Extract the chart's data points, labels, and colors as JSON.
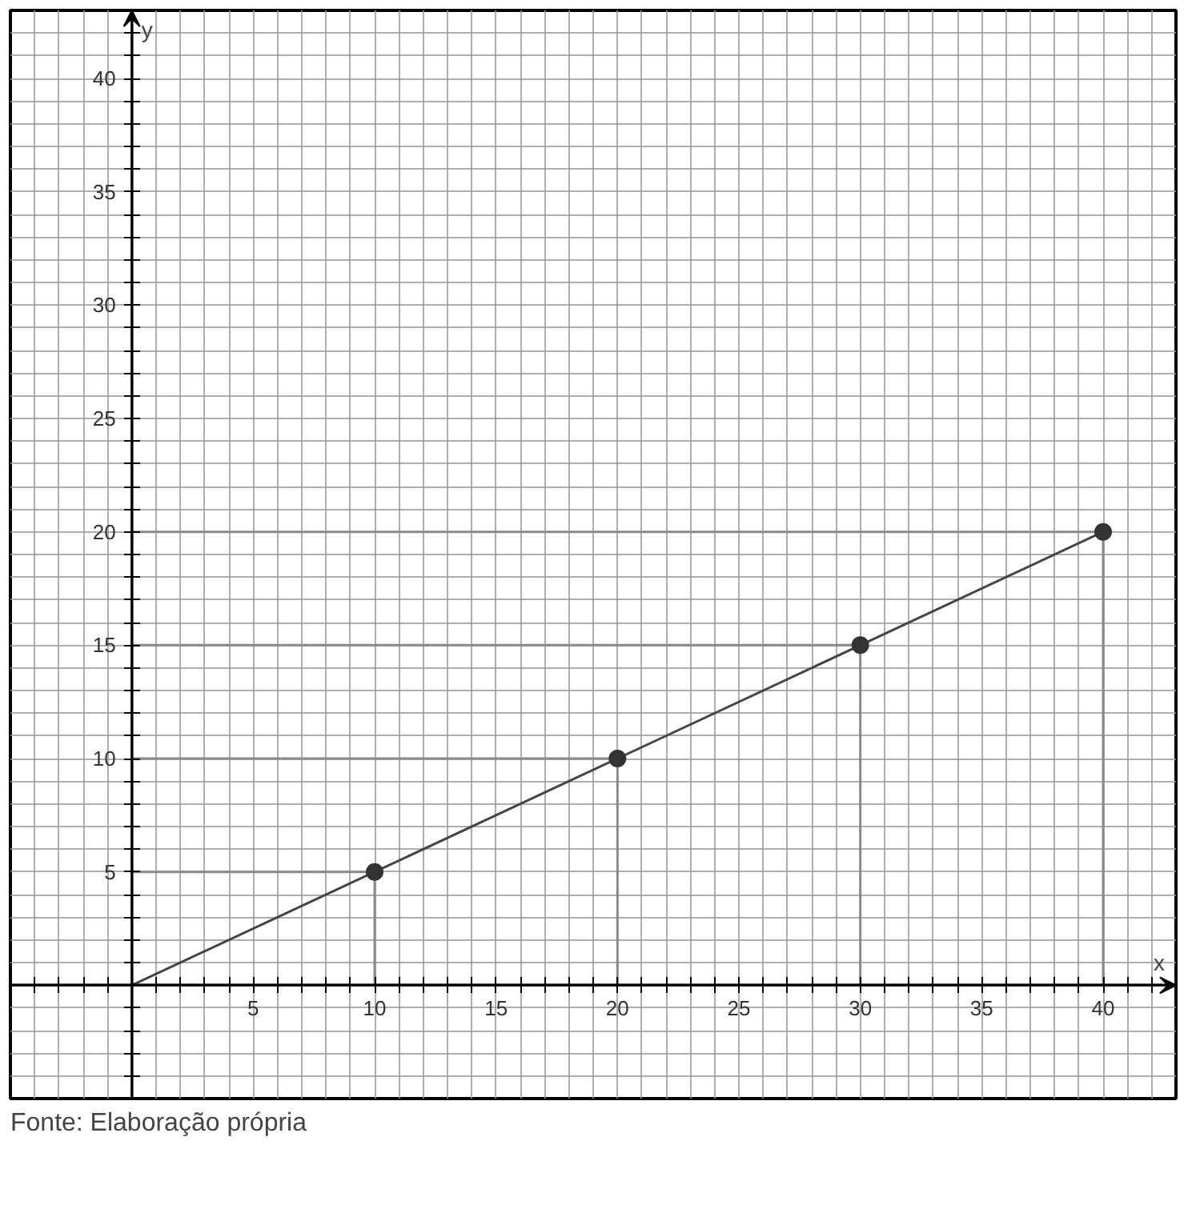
{
  "chart_data": {
    "type": "line",
    "xlabel": "x",
    "ylabel": "y",
    "xlim": [
      -5,
      43
    ],
    "ylim": [
      -5,
      43
    ],
    "xticks": [
      {
        "value": -5,
        "label": null
      },
      {
        "value": -4,
        "label": null
      },
      {
        "value": -3,
        "label": null
      },
      {
        "value": -2,
        "label": null
      },
      {
        "value": -1,
        "label": null
      },
      {
        "value": 0,
        "label": null
      },
      {
        "value": 1,
        "label": null
      },
      {
        "value": 2,
        "label": null
      },
      {
        "value": 3,
        "label": null
      },
      {
        "value": 4,
        "label": null
      },
      5,
      {
        "value": 6,
        "label": null
      },
      {
        "value": 7,
        "label": null
      },
      {
        "value": 8,
        "label": null
      },
      {
        "value": 9,
        "label": null
      },
      10,
      {
        "value": 11,
        "label": null
      },
      {
        "value": 12,
        "label": null
      },
      {
        "value": 13,
        "label": null
      },
      {
        "value": 14,
        "label": null
      },
      15,
      {
        "value": 16,
        "label": null
      },
      {
        "value": 17,
        "label": null
      },
      {
        "value": 18,
        "label": null
      },
      {
        "value": 19,
        "label": null
      },
      20,
      {
        "value": 21,
        "label": null
      },
      {
        "value": 22,
        "label": null
      },
      {
        "value": 23,
        "label": null
      },
      {
        "value": 24,
        "label": null
      },
      25,
      {
        "value": 26,
        "label": null
      },
      {
        "value": 27,
        "label": null
      },
      {
        "value": 28,
        "label": null
      },
      {
        "value": 29,
        "label": null
      },
      30,
      {
        "value": 31,
        "label": null
      },
      {
        "value": 32,
        "label": null
      },
      {
        "value": 33,
        "label": null
      },
      {
        "value": 34,
        "label": null
      },
      35,
      {
        "value": 36,
        "label": null
      },
      {
        "value": 37,
        "label": null
      },
      {
        "value": 38,
        "label": null
      },
      {
        "value": 39,
        "label": null
      },
      40,
      {
        "value": 41,
        "label": null
      },
      {
        "value": 42,
        "label": null
      },
      {
        "value": 43,
        "label": null
      }
    ],
    "yticks": [
      {
        "value": -5,
        "label": null
      },
      {
        "value": -4,
        "label": null
      },
      {
        "value": -3,
        "label": null
      },
      {
        "value": -2,
        "label": null
      },
      {
        "value": -1,
        "label": null
      },
      {
        "value": 0,
        "label": null
      },
      {
        "value": 1,
        "label": null
      },
      {
        "value": 2,
        "label": null
      },
      {
        "value": 3,
        "label": null
      },
      {
        "value": 4,
        "label": null
      },
      5,
      {
        "value": 6,
        "label": null
      },
      {
        "value": 7,
        "label": null
      },
      {
        "value": 8,
        "label": null
      },
      {
        "value": 9,
        "label": null
      },
      10,
      {
        "value": 11,
        "label": null
      },
      {
        "value": 12,
        "label": null
      },
      {
        "value": 13,
        "label": null
      },
      {
        "value": 14,
        "label": null
      },
      15,
      {
        "value": 16,
        "label": null
      },
      {
        "value": 17,
        "label": null
      },
      {
        "value": 18,
        "label": null
      },
      {
        "value": 19,
        "label": null
      },
      20,
      {
        "value": 21,
        "label": null
      },
      {
        "value": 22,
        "label": null
      },
      {
        "value": 23,
        "label": null
      },
      {
        "value": 24,
        "label": null
      },
      25,
      {
        "value": 26,
        "label": null
      },
      {
        "value": 27,
        "label": null
      },
      {
        "value": 28,
        "label": null
      },
      {
        "value": 29,
        "label": null
      },
      30,
      {
        "value": 31,
        "label": null
      },
      {
        "value": 32,
        "label": null
      },
      {
        "value": 33,
        "label": null
      },
      {
        "value": 34,
        "label": null
      },
      35,
      {
        "value": 36,
        "label": null
      },
      {
        "value": 37,
        "label": null
      },
      {
        "value": 38,
        "label": null
      },
      {
        "value": 39,
        "label": null
      },
      40,
      {
        "value": 41,
        "label": null
      },
      {
        "value": 42,
        "label": null
      },
      {
        "value": 43,
        "label": null
      }
    ],
    "grid": true,
    "series": [
      {
        "type": "line",
        "color": "#8a8a8a",
        "x": [
          0,
          10,
          10,
          null,
          0,
          20,
          20,
          null,
          0,
          30,
          30,
          null,
          0,
          40,
          40
        ],
        "values": [
          5,
          5,
          0,
          null,
          10,
          10,
          0,
          null,
          15,
          15,
          0,
          null,
          20,
          20,
          0
        ]
      },
      {
        "color": "#444444",
        "x": [
          0,
          10,
          20,
          30,
          40
        ],
        "values": [
          0,
          5,
          10,
          15,
          20
        ]
      },
      {
        "type": "scatter",
        "color": "#333333",
        "marker": "circle",
        "x": [
          10,
          20,
          30,
          40
        ],
        "values": [
          5,
          10,
          15,
          20
        ]
      }
    ],
    "annotations": [
      "Fonte: Elaboração própria"
    ]
  }
}
